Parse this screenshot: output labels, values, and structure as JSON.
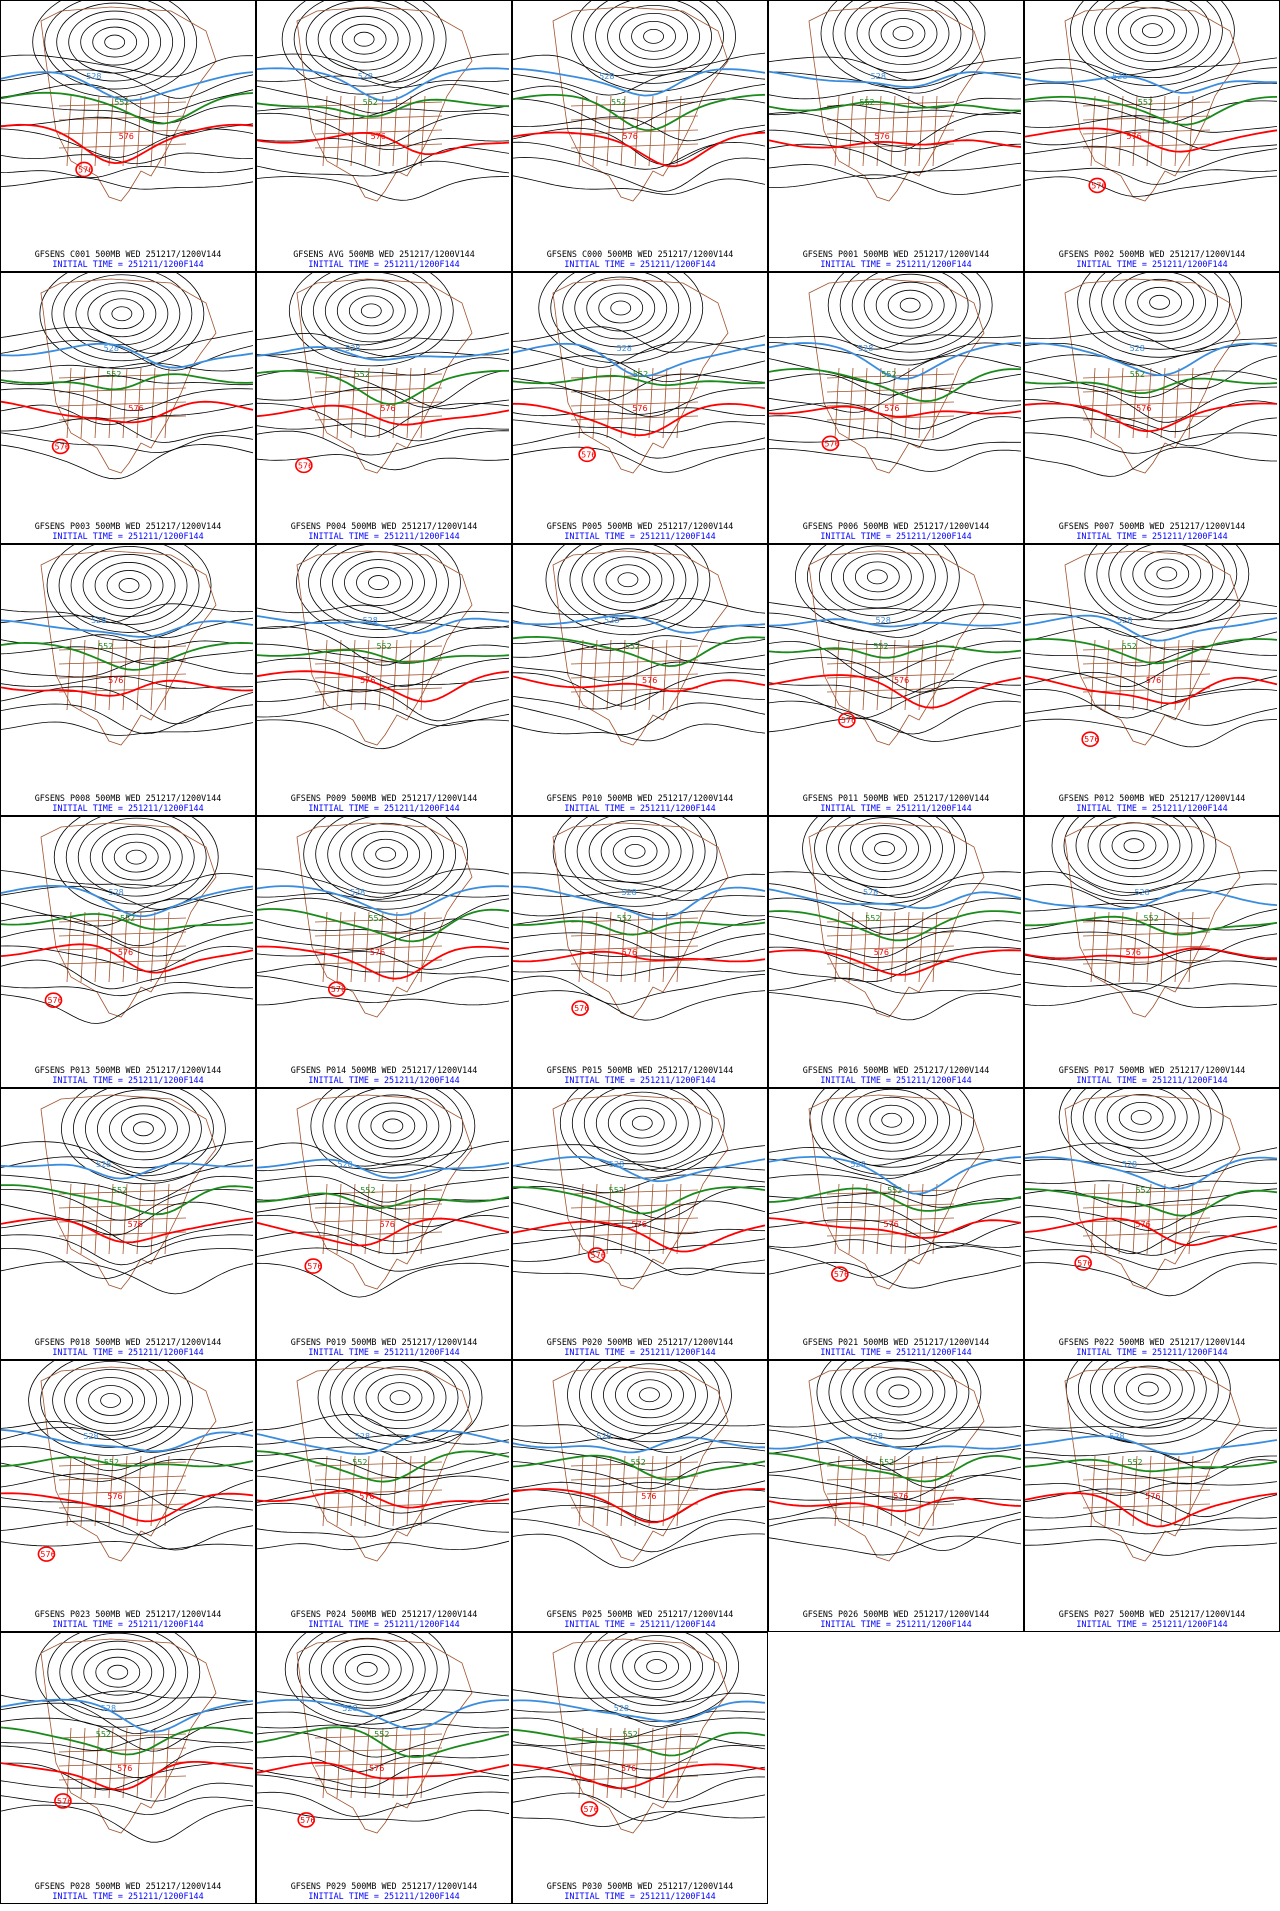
{
  "colors": {
    "height_contour": "#000000",
    "contour_528": "#3a8dde",
    "contour_552": "#1a8a1a",
    "contour_576": "#ff0000",
    "geography": "#a0522d",
    "initial_time_text": "#0000ff",
    "caption_text": "#000000",
    "panel_border": "#000000"
  },
  "map": {
    "level": "500MB",
    "labeled_contours": [
      "528",
      "552",
      "576"
    ]
  },
  "panels": [
    {
      "title": "GFSENS C001 500MB WED 251217/1200V144",
      "init": "INITIAL TIME = 251211/1200F144"
    },
    {
      "title": "GFSENS AVG 500MB WED 251217/1200V144",
      "init": "INITIAL TIME = 251211/1200F144"
    },
    {
      "title": "GFSENS C000 500MB WED 251217/1200V144",
      "init": "INITIAL TIME = 251211/1200F144"
    },
    {
      "title": "GFSENS P001 500MB WED 251217/1200V144",
      "init": "INITIAL TIME = 251211/1200F144"
    },
    {
      "title": "GFSENS P002 500MB WED 251217/1200V144",
      "init": "INITIAL TIME = 251211/1200F144"
    },
    {
      "title": "GFSENS P003 500MB WED 251217/1200V144",
      "init": "INITIAL TIME = 251211/1200F144"
    },
    {
      "title": "GFSENS P004 500MB WED 251217/1200V144",
      "init": "INITIAL TIME = 251211/1200F144"
    },
    {
      "title": "GFSENS P005 500MB WED 251217/1200V144",
      "init": "INITIAL TIME = 251211/1200F144"
    },
    {
      "title": "GFSENS P006 500MB WED 251217/1200V144",
      "init": "INITIAL TIME = 251211/1200F144"
    },
    {
      "title": "GFSENS P007 500MB WED 251217/1200V144",
      "init": "INITIAL TIME = 251211/1200F144"
    },
    {
      "title": "GFSENS P008 500MB WED 251217/1200V144",
      "init": "INITIAL TIME = 251211/1200F144"
    },
    {
      "title": "GFSENS P009 500MB WED 251217/1200V144",
      "init": "INITIAL TIME = 251211/1200F144"
    },
    {
      "title": "GFSENS P010 500MB WED 251217/1200V144",
      "init": "INITIAL TIME = 251211/1200F144"
    },
    {
      "title": "GFSENS P011 500MB WED 251217/1200V144",
      "init": "INITIAL TIME = 251211/1200F144"
    },
    {
      "title": "GFSENS P012 500MB WED 251217/1200V144",
      "init": "INITIAL TIME = 251211/1200F144"
    },
    {
      "title": "GFSENS P013 500MB WED 251217/1200V144",
      "init": "INITIAL TIME = 251211/1200F144"
    },
    {
      "title": "GFSENS P014 500MB WED 251217/1200V144",
      "init": "INITIAL TIME = 251211/1200F144"
    },
    {
      "title": "GFSENS P015 500MB WED 251217/1200V144",
      "init": "INITIAL TIME = 251211/1200F144"
    },
    {
      "title": "GFSENS P016 500MB WED 251217/1200V144",
      "init": "INITIAL TIME = 251211/1200F144"
    },
    {
      "title": "GFSENS P017 500MB WED 251217/1200V144",
      "init": "INITIAL TIME = 251211/1200F144"
    },
    {
      "title": "GFSENS P018 500MB WED 251217/1200V144",
      "init": "INITIAL TIME = 251211/1200F144"
    },
    {
      "title": "GFSENS P019 500MB WED 251217/1200V144",
      "init": "INITIAL TIME = 251211/1200F144"
    },
    {
      "title": "GFSENS P020 500MB WED 251217/1200V144",
      "init": "INITIAL TIME = 251211/1200F144"
    },
    {
      "title": "GFSENS P021 500MB WED 251217/1200V144",
      "init": "INITIAL TIME = 251211/1200F144"
    },
    {
      "title": "GFSENS P022 500MB WED 251217/1200V144",
      "init": "INITIAL TIME = 251211/1200F144"
    },
    {
      "title": "GFSENS P023 500MB WED 251217/1200V144",
      "init": "INITIAL TIME = 251211/1200F144"
    },
    {
      "title": "GFSENS P024 500MB WED 251217/1200V144",
      "init": "INITIAL TIME = 251211/1200F144"
    },
    {
      "title": "GFSENS P025 500MB WED 251217/1200V144",
      "init": "INITIAL TIME = 251211/1200F144"
    },
    {
      "title": "GFSENS P026 500MB WED 251217/1200V144",
      "init": "INITIAL TIME = 251211/1200F144"
    },
    {
      "title": "GFSENS P027 500MB WED 251217/1200V144",
      "init": "INITIAL TIME = 251211/1200F144"
    },
    {
      "title": "GFSENS P028 500MB WED 251217/1200V144",
      "init": "INITIAL TIME = 251211/1200F144"
    },
    {
      "title": "GFSENS P029 500MB WED 251217/1200V144",
      "init": "INITIAL TIME = 251211/1200F144"
    },
    {
      "title": "GFSENS P030 500MB WED 251217/1200V144",
      "init": "INITIAL TIME = 251211/1200F144"
    }
  ]
}
